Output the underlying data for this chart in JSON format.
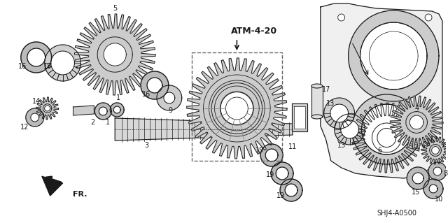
{
  "background_color": "#ffffff",
  "fig_width": 6.4,
  "fig_height": 3.19,
  "dpi": 100,
  "atm_label": "ATM-4-20",
  "fr_label": "FR.",
  "ref_label": "SHJ4-A0500",
  "dark": "#1a1a1a",
  "gray": "#888888",
  "lightgray": "#cccccc",
  "midgray": "#666666"
}
